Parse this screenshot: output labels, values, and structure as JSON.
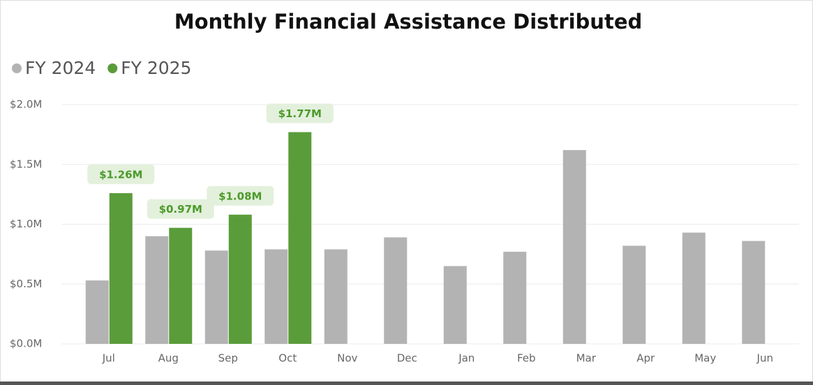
{
  "chart_data": {
    "type": "bar",
    "title": "Monthly Financial Assistance Distributed",
    "categories": [
      "Jul",
      "Aug",
      "Sep",
      "Oct",
      "Nov",
      "Dec",
      "Jan",
      "Feb",
      "Mar",
      "Apr",
      "May",
      "Jun"
    ],
    "series": [
      {
        "name": "FY 2024",
        "color": "#b3b3b3",
        "values": [
          530000,
          900000,
          780000,
          790000,
          790000,
          890000,
          650000,
          770000,
          1620000,
          820000,
          930000,
          860000
        ]
      },
      {
        "name": "FY 2025",
        "color": "#5a9c3a",
        "values": [
          1260000,
          970000,
          1080000,
          1770000,
          null,
          null,
          null,
          null,
          null,
          null,
          null,
          null
        ],
        "value_labels": [
          "$1.26M",
          "$0.97M",
          "$1.08M",
          "$1.77M",
          null,
          null,
          null,
          null,
          null,
          null,
          null,
          null
        ]
      }
    ],
    "ylim": [
      0,
      2000000
    ],
    "yticks": [
      {
        "value": 0,
        "label": "$0.0M"
      },
      {
        "value": 500000,
        "label": "$0.5M"
      },
      {
        "value": 1000000,
        "label": "$1.0M"
      },
      {
        "value": 1500000,
        "label": "$1.5M"
      },
      {
        "value": 2000000,
        "label": "$2.0M"
      }
    ],
    "grid": true,
    "legend": "top-left"
  }
}
